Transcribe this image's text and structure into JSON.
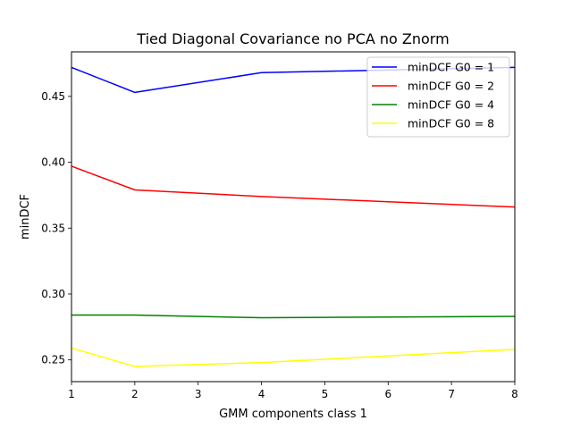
{
  "chart_data": {
    "type": "line",
    "title": "Tied Diagonal Covariance no PCA no Znorm",
    "xlabel": "GMM components class 1",
    "ylabel": "minDCF",
    "xlim": [
      1,
      8
    ],
    "ylim": [
      0.2335,
      0.4838
    ],
    "xticks": [
      1,
      2,
      3,
      4,
      5,
      6,
      7,
      8
    ],
    "yticks": [
      0.25,
      0.3,
      0.35,
      0.4,
      0.45
    ],
    "ytick_labels": [
      "0.25",
      "0.30",
      "0.35",
      "0.40",
      "0.45"
    ],
    "x": [
      1,
      2,
      4,
      8
    ],
    "legend_position": "top-right",
    "grid": false,
    "series": [
      {
        "name": "minDCF G0 = 1",
        "color": "#0000ff",
        "values": [
          0.472,
          0.453,
          0.468,
          0.472
        ]
      },
      {
        "name": "minDCF G0 = 2",
        "color": "#ff0000",
        "values": [
          0.397,
          0.379,
          0.374,
          0.366
        ]
      },
      {
        "name": "minDCF G0 = 4",
        "color": "#008000",
        "values": [
          0.284,
          0.284,
          0.282,
          0.283
        ]
      },
      {
        "name": "minDCF G0 = 8",
        "color": "#ffff00",
        "values": [
          0.259,
          0.245,
          0.248,
          0.258
        ]
      }
    ]
  }
}
